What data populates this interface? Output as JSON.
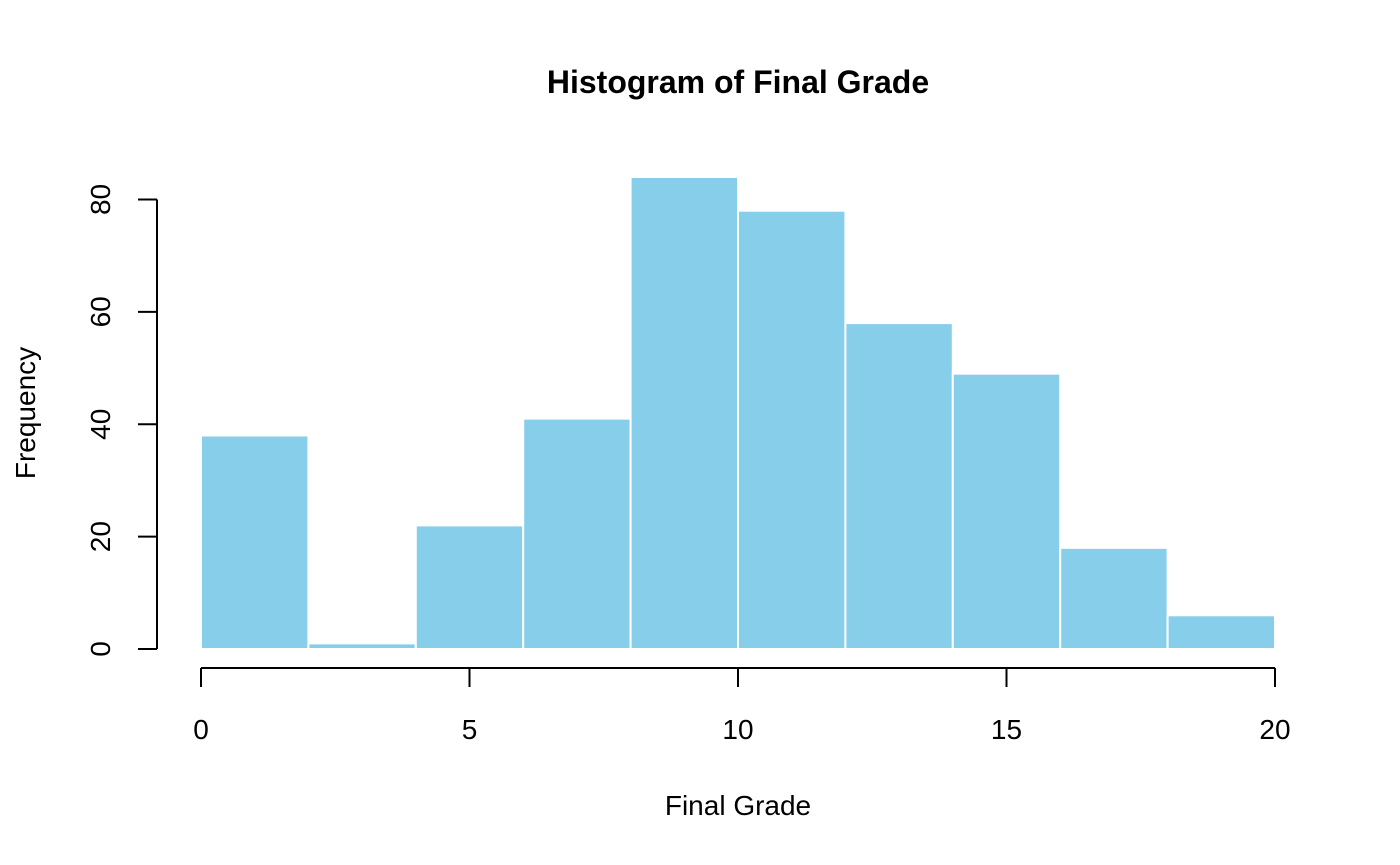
{
  "chart_data": {
    "type": "bar",
    "subtype": "histogram",
    "title": "Histogram of Final Grade",
    "xlabel": "Final Grade",
    "ylabel": "Frequency",
    "bin_edges": [
      0,
      2,
      4,
      6,
      8,
      10,
      12,
      14,
      16,
      18,
      20
    ],
    "values": [
      38,
      1,
      22,
      41,
      84,
      78,
      58,
      49,
      18,
      6
    ],
    "xlim": [
      0,
      20
    ],
    "ylim": [
      0,
      84
    ],
    "x_ticks": [
      0,
      5,
      10,
      15,
      20
    ],
    "y_ticks": [
      0,
      20,
      40,
      60,
      80
    ],
    "bar_color": "#87CEEB",
    "bar_border_color": "#FFFFFF",
    "grid": false,
    "legend": "none"
  }
}
